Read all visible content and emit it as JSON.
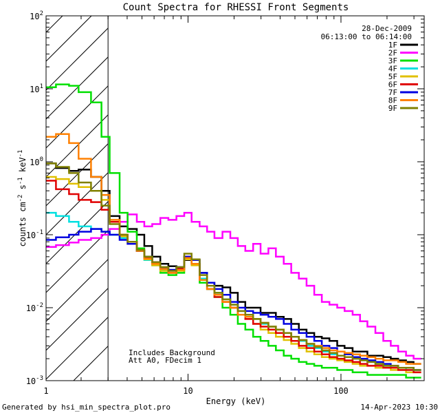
{
  "chart_data": {
    "type": "line",
    "title": "Count Spectra for RHESSI Front Segments",
    "date": "28-Dec-2009",
    "time_range": "06:13:00 to 06:14:00",
    "xlabel": "Energy (keV)",
    "ylabel": {
      "base": "counts cm",
      "exp1": "-2",
      "mid": " s",
      "exp2": "-1",
      "end": " keV",
      "exp3": "-1"
    },
    "xscale": "log",
    "yscale": "log",
    "xlim": [
      1.18,
      350
    ],
    "ylim": [
      0.001,
      100
    ],
    "x_ticks": [
      {
        "value": 1,
        "label": "1"
      },
      {
        "value": 10,
        "label": "10"
      },
      {
        "value": 100,
        "label": "100"
      }
    ],
    "y_ticks": [
      {
        "value": 0.001,
        "base": "10",
        "exp": "-3"
      },
      {
        "value": 0.01,
        "base": "10",
        "exp": "-2"
      },
      {
        "value": 0.1,
        "base": "10",
        "exp": "-1"
      },
      {
        "value": 1,
        "base": "10",
        "exp": "0"
      },
      {
        "value": 10,
        "base": "10",
        "exp": "1"
      },
      {
        "value": 100,
        "base": "10",
        "exp": "2"
      }
    ],
    "shaded_region": {
      "x_from": 1.18,
      "x_to": 3.0,
      "pattern": "diagonal hatch"
    },
    "annotations": [
      "Includes Background",
      "Att A0, FDecim 1"
    ],
    "legend_position": "top-right",
    "energy_bins": [
      1.2,
      1.5,
      1.8,
      2.1,
      2.5,
      2.9,
      3.3,
      3.8,
      4.3,
      4.9,
      5.5,
      6.2,
      7.0,
      7.9,
      8.9,
      10.0,
      11.2,
      12.6,
      14.1,
      15.8,
      17.8,
      20.0,
      22.4,
      25.1,
      28.2,
      31.6,
      35.5,
      39.8,
      44.7,
      50.1,
      56.2,
      63.1,
      70.8,
      79.4,
      89.1,
      100,
      112,
      126,
      141,
      158,
      178,
      200,
      224,
      251,
      282,
      316
    ],
    "series": [
      {
        "name": "1F",
        "color": "#000000",
        "values": [
          0.95,
          0.82,
          0.75,
          0.78,
          0.62,
          0.4,
          0.18,
          0.13,
          0.12,
          0.1,
          0.07,
          0.05,
          0.04,
          0.037,
          0.035,
          0.045,
          0.045,
          0.03,
          0.022,
          0.02,
          0.019,
          0.016,
          0.012,
          0.01,
          0.01,
          0.0085,
          0.0085,
          0.0075,
          0.007,
          0.006,
          0.005,
          0.0045,
          0.004,
          0.0038,
          0.0035,
          0.003,
          0.0028,
          0.0025,
          0.0025,
          0.0022,
          0.0022,
          0.0021,
          0.002,
          0.0019,
          0.0018,
          0.0017
        ]
      },
      {
        "name": "2F",
        "color": "#ff00ff",
        "values": [
          0.068,
          0.072,
          0.078,
          0.085,
          0.09,
          0.1,
          0.12,
          0.15,
          0.19,
          0.15,
          0.13,
          0.14,
          0.17,
          0.16,
          0.18,
          0.2,
          0.15,
          0.13,
          0.11,
          0.09,
          0.11,
          0.09,
          0.07,
          0.06,
          0.075,
          0.055,
          0.065,
          0.05,
          0.04,
          0.03,
          0.025,
          0.02,
          0.015,
          0.012,
          0.011,
          0.01,
          0.009,
          0.008,
          0.0065,
          0.0055,
          0.0045,
          0.0035,
          0.003,
          0.0025,
          0.0022,
          0.002
        ]
      },
      {
        "name": "3F",
        "color": "#00e000",
        "values": [
          10.5,
          11.5,
          11.0,
          9.0,
          6.5,
          2.2,
          0.7,
          0.2,
          0.11,
          0.065,
          0.05,
          0.04,
          0.03,
          0.028,
          0.03,
          0.048,
          0.04,
          0.022,
          0.018,
          0.014,
          0.01,
          0.008,
          0.006,
          0.005,
          0.004,
          0.0035,
          0.003,
          0.0026,
          0.0022,
          0.002,
          0.0018,
          0.0017,
          0.0016,
          0.0015,
          0.0015,
          0.0014,
          0.0014,
          0.0013,
          0.0013,
          0.0012,
          0.0012,
          0.0012,
          0.0012,
          0.0012,
          0.0011,
          0.0011
        ]
      },
      {
        "name": "4F",
        "color": "#00e0e0",
        "values": [
          0.2,
          0.18,
          0.15,
          0.13,
          0.12,
          0.11,
          0.1,
          0.09,
          0.08,
          0.06,
          0.045,
          0.038,
          0.033,
          0.03,
          0.034,
          0.05,
          0.04,
          0.025,
          0.018,
          0.016,
          0.013,
          0.011,
          0.009,
          0.008,
          0.007,
          0.006,
          0.0055,
          0.005,
          0.0045,
          0.004,
          0.0035,
          0.003,
          0.0028,
          0.0025,
          0.0023,
          0.0022,
          0.0021,
          0.002,
          0.0019,
          0.0018,
          0.0017,
          0.0016,
          0.0015,
          0.0015,
          0.0014,
          0.0014
        ]
      },
      {
        "name": "5F",
        "color": "#e0c000",
        "values": [
          0.62,
          0.58,
          0.5,
          0.45,
          0.4,
          0.3,
          0.15,
          0.095,
          0.075,
          0.06,
          0.046,
          0.038,
          0.032,
          0.03,
          0.032,
          0.046,
          0.038,
          0.024,
          0.018,
          0.015,
          0.012,
          0.01,
          0.008,
          0.007,
          0.006,
          0.005,
          0.0045,
          0.004,
          0.0036,
          0.0032,
          0.0028,
          0.0025,
          0.0023,
          0.0021,
          0.002,
          0.0019,
          0.0018,
          0.0017,
          0.0016,
          0.0016,
          0.0015,
          0.0015,
          0.0014,
          0.0014,
          0.0013,
          0.0013
        ]
      },
      {
        "name": "6F",
        "color": "#e00000",
        "values": [
          0.55,
          0.42,
          0.36,
          0.3,
          0.28,
          0.22,
          0.15,
          0.1,
          0.08,
          0.06,
          0.048,
          0.04,
          0.034,
          0.03,
          0.034,
          0.05,
          0.04,
          0.024,
          0.018,
          0.014,
          0.012,
          0.01,
          0.008,
          0.007,
          0.006,
          0.0055,
          0.005,
          0.0045,
          0.004,
          0.0035,
          0.003,
          0.0028,
          0.0025,
          0.0023,
          0.0021,
          0.002,
          0.0019,
          0.0018,
          0.0017,
          0.0016,
          0.0016,
          0.0015,
          0.0015,
          0.0014,
          0.0014,
          0.0013
        ]
      },
      {
        "name": "7F",
        "color": "#0000e0",
        "values": [
          0.085,
          0.092,
          0.1,
          0.11,
          0.12,
          0.11,
          0.1,
          0.085,
          0.075,
          0.06,
          0.05,
          0.042,
          0.035,
          0.033,
          0.036,
          0.05,
          0.045,
          0.03,
          0.022,
          0.018,
          0.015,
          0.012,
          0.01,
          0.009,
          0.0085,
          0.008,
          0.0075,
          0.007,
          0.006,
          0.005,
          0.0045,
          0.004,
          0.0035,
          0.003,
          0.0028,
          0.0025,
          0.0023,
          0.0021,
          0.002,
          0.0019,
          0.0018,
          0.0017,
          0.0016,
          0.0015,
          0.0015,
          0.0014
        ]
      },
      {
        "name": "8F",
        "color": "#ff8000",
        "values": [
          2.2,
          2.4,
          1.8,
          1.1,
          0.62,
          0.35,
          0.16,
          0.1,
          0.08,
          0.06,
          0.047,
          0.04,
          0.034,
          0.03,
          0.033,
          0.048,
          0.04,
          0.024,
          0.018,
          0.015,
          0.012,
          0.01,
          0.008,
          0.0075,
          0.007,
          0.0062,
          0.0055,
          0.005,
          0.0045,
          0.004,
          0.0036,
          0.0032,
          0.003,
          0.0028,
          0.0026,
          0.0025,
          0.0024,
          0.0023,
          0.0022,
          0.0021,
          0.002,
          0.0019,
          0.0019,
          0.0018,
          0.0017,
          0.0017
        ]
      },
      {
        "name": "9F",
        "color": "#808000",
        "values": [
          0.95,
          0.85,
          0.7,
          0.52,
          0.4,
          0.25,
          0.14,
          0.1,
          0.08,
          0.062,
          0.05,
          0.042,
          0.036,
          0.032,
          0.036,
          0.055,
          0.046,
          0.028,
          0.02,
          0.016,
          0.013,
          0.011,
          0.009,
          0.008,
          0.007,
          0.0062,
          0.0055,
          0.005,
          0.0045,
          0.004,
          0.0036,
          0.0032,
          0.0029,
          0.0026,
          0.0024,
          0.0022,
          0.0021,
          0.002,
          0.0019,
          0.0018,
          0.0017,
          0.0016,
          0.0016,
          0.0015,
          0.0015,
          0.0014
        ]
      }
    ]
  },
  "footer": {
    "generated_by": "Generated by hsi_min_spectra_plot.pro",
    "timestamp": "14-Apr-2023 10:30"
  }
}
